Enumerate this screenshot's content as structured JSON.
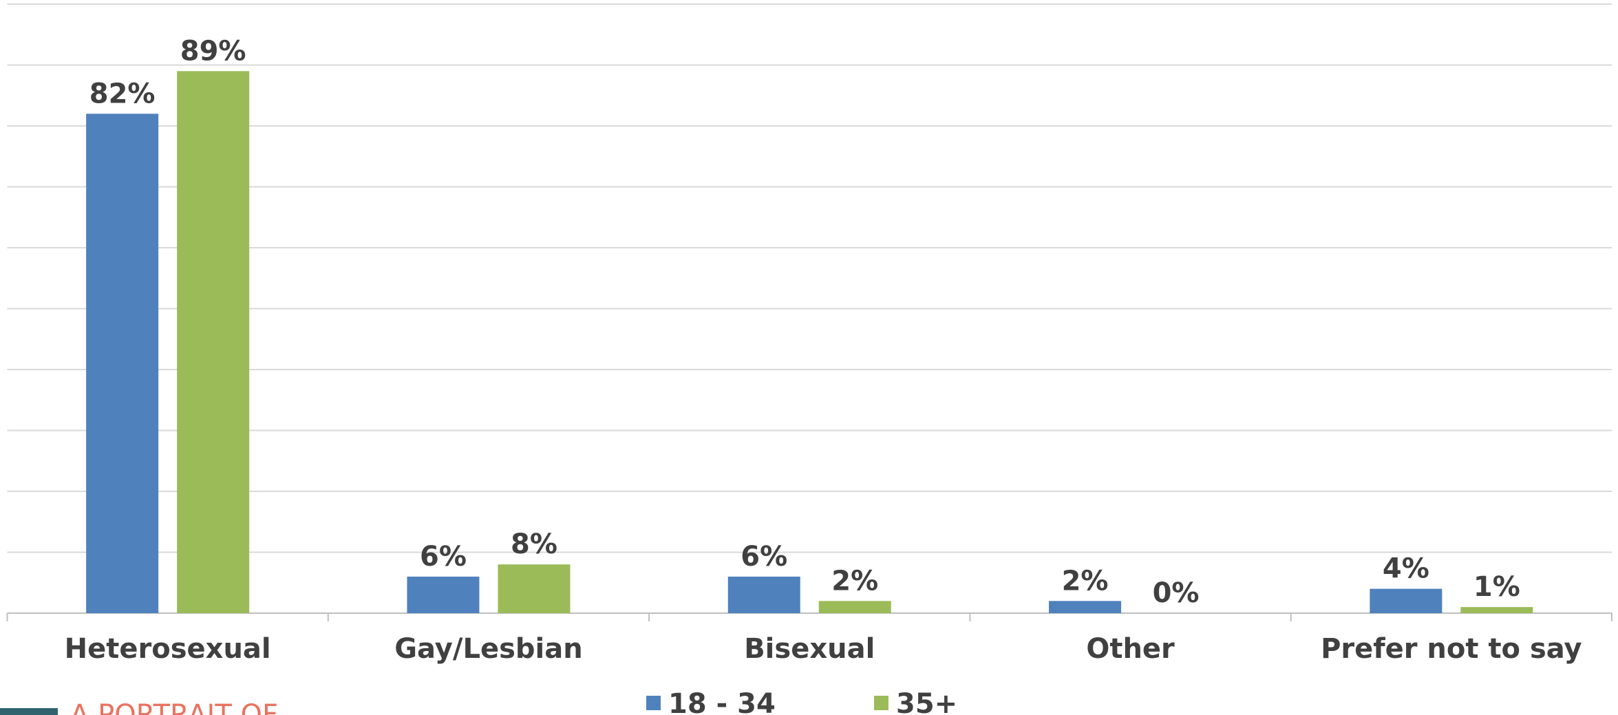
{
  "chart_data": {
    "type": "bar",
    "categories": [
      "Heterosexual",
      "Gay/Lesbian",
      "Bisexual",
      "Other",
      "Prefer not to say"
    ],
    "series": [
      {
        "name": "18 - 34",
        "color": "#4f81bd",
        "values": [
          82,
          6,
          6,
          2,
          4
        ],
        "value_labels": [
          "82%",
          "6%",
          "6%",
          "2%",
          "4%"
        ]
      },
      {
        "name": "35+",
        "color": "#9bbb59",
        "values": [
          89,
          8,
          2,
          0,
          1
        ],
        "value_labels": [
          "89%",
          "8%",
          "2%",
          "0%",
          "1%"
        ]
      }
    ],
    "ylim": [
      0,
      100
    ],
    "yticks": [
      0,
      10,
      20,
      30,
      40,
      50,
      60,
      70,
      80,
      90,
      100
    ],
    "grid": true,
    "legend": "bottom"
  },
  "footer": {
    "text": "A PORTRAIT OF"
  }
}
